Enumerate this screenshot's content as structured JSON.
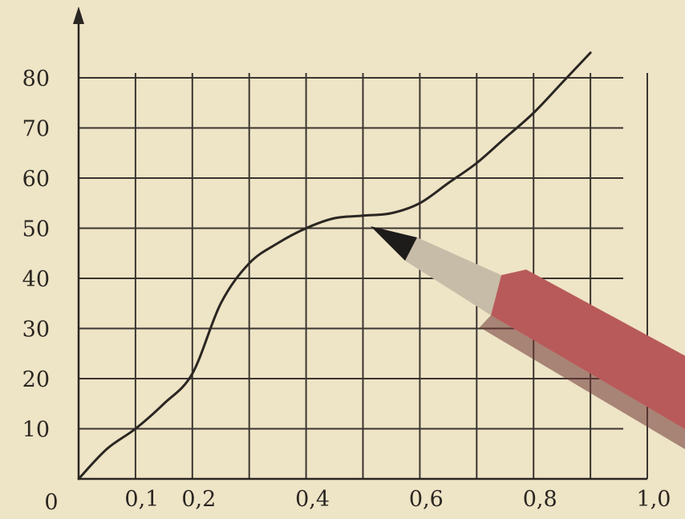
{
  "chart_data": {
    "type": "line",
    "title": "",
    "xlabel": "",
    "ylabel": "",
    "xlim": [
      0,
      1.0
    ],
    "ylim": [
      0,
      80
    ],
    "grid": true,
    "x_ticks": [
      {
        "value": 0.1,
        "label": "0,1"
      },
      {
        "value": 0.2,
        "label": "0,2"
      },
      {
        "value": 0.4,
        "label": "0,4"
      },
      {
        "value": 0.6,
        "label": "0,6"
      },
      {
        "value": 0.8,
        "label": "0,8"
      },
      {
        "value": 1.0,
        "label": "1,0"
      }
    ],
    "y_ticks": [
      {
        "value": 10,
        "label": "10"
      },
      {
        "value": 20,
        "label": "20"
      },
      {
        "value": 30,
        "label": "30"
      },
      {
        "value": 40,
        "label": "40"
      },
      {
        "value": 50,
        "label": "50"
      },
      {
        "value": 60,
        "label": "60"
      },
      {
        "value": 70,
        "label": "70"
      },
      {
        "value": 80,
        "label": "80"
      }
    ],
    "origin_label": "0",
    "series": [
      {
        "x": [
          0,
          0.05,
          0.1,
          0.15,
          0.2,
          0.25,
          0.3,
          0.35,
          0.4,
          0.45,
          0.5,
          0.55,
          0.6,
          0.65,
          0.7,
          0.75,
          0.8,
          0.85,
          0.9
        ],
        "y": [
          0,
          6,
          10,
          15,
          21,
          35,
          43,
          47,
          50,
          52,
          52.5,
          53,
          55,
          59,
          63,
          68,
          73,
          79,
          85
        ]
      }
    ]
  },
  "colors": {
    "paper": "#eee4c6",
    "ink": "#2a2622",
    "grid": "#3a3530",
    "pencil_body": "#b85a5a",
    "pencil_wood": "#c7bca8",
    "pencil_lead": "#1e1c1a"
  }
}
